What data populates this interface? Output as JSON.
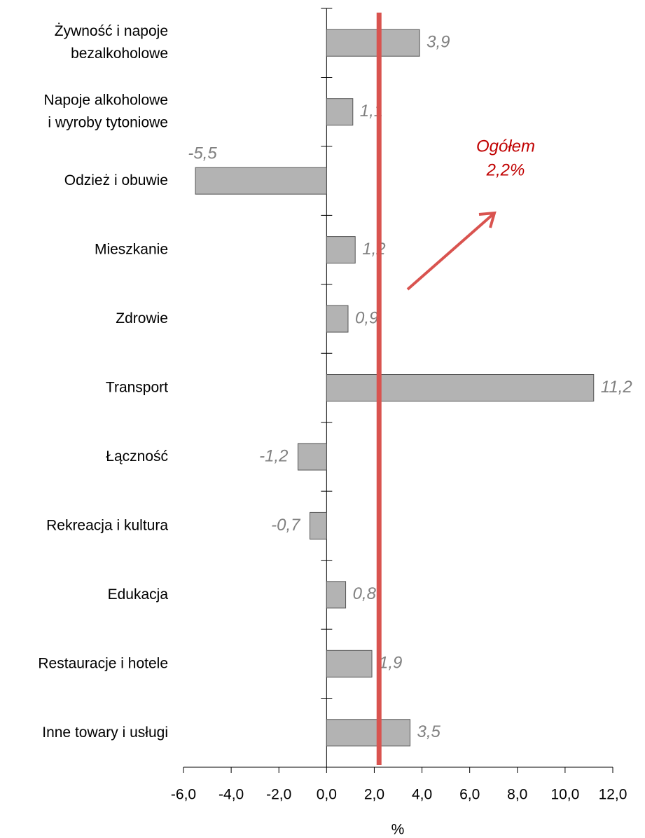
{
  "chart_data": {
    "type": "bar",
    "orientation": "horizontal",
    "x_label": "%",
    "categories": [
      "Żywność i napoje\nbezalkoholowe",
      "Napoje alkoholowe\ni wyroby tytoniowe",
      "Odzież i obuwie",
      "Mieszkanie",
      "Zdrowie",
      "Transport",
      "Łączność",
      "Rekreacja i kultura",
      "Edukacja",
      "Restauracje i hotele",
      "Inne towary i usługi"
    ],
    "values": [
      3.9,
      1.1,
      -5.5,
      1.2,
      0.9,
      11.2,
      -1.2,
      -0.7,
      0.8,
      1.9,
      3.5
    ],
    "value_labels": [
      "3,9",
      "1,1",
      "-5,5",
      "1,2",
      "0,9",
      "11,2",
      "-1,2",
      "-0,7",
      "0,8",
      "1,9",
      "3,5"
    ],
    "color": "#b3b3b3",
    "xlim": [
      -6,
      12
    ],
    "xticks": [
      {
        "value": -6,
        "label": "-6,0"
      },
      {
        "value": -4,
        "label": "-4,0"
      },
      {
        "value": -2,
        "label": "-2,0"
      },
      {
        "value": 0,
        "label": "0,0"
      },
      {
        "value": 2,
        "label": "2,0"
      },
      {
        "value": 4,
        "label": "4,0"
      },
      {
        "value": 6,
        "label": "6,0"
      },
      {
        "value": 8,
        "label": "8,0"
      },
      {
        "value": 10,
        "label": "10,0"
      },
      {
        "value": 12,
        "label": "12,0"
      }
    ],
    "reference_line": {
      "name": "Ogółem",
      "value": 2.2,
      "label": "2,2%",
      "color": "#d9534f"
    }
  }
}
